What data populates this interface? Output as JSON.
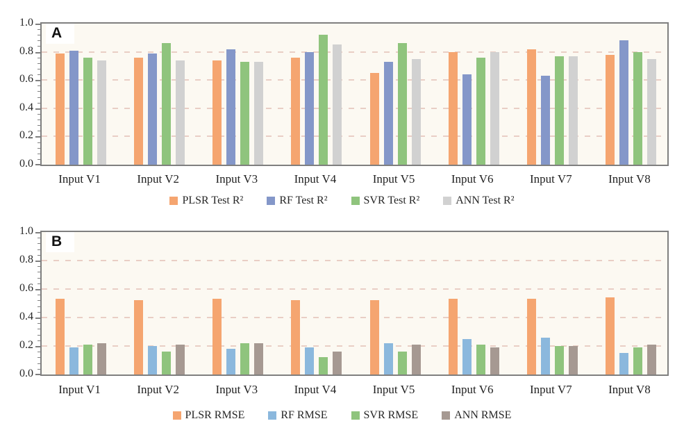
{
  "style": {
    "plot_bg": "#fcf9f2",
    "grid_color": "#e9cec5",
    "border_color": "#7f7f7f",
    "text_color": "#262626",
    "panel_label_color": "#111111"
  },
  "chart_data": [
    {
      "type": "bar",
      "panel_label": "A",
      "title": "",
      "xlabel": "",
      "ylabel": "",
      "ylim": [
        0,
        1.0
      ],
      "yticks": [
        0,
        0.2,
        0.4,
        0.6,
        0.8,
        1.0
      ],
      "ytick_labels": [
        "0.0",
        "0.2",
        "0.4",
        "0.6",
        "0.8",
        "1.0"
      ],
      "gridlines": [
        0.2,
        0.4,
        0.6,
        0.8
      ],
      "grid": "dashed",
      "legend_position": "bottom",
      "categories": [
        "Input V1",
        "Input V2",
        "Input V3",
        "Input V4",
        "Input V5",
        "Input V6",
        "Input V7",
        "Input V8"
      ],
      "series": [
        {
          "name": "PLSR Test R²",
          "color": "#f5a570",
          "values": [
            0.79,
            0.76,
            0.74,
            0.76,
            0.65,
            0.8,
            0.82,
            0.78
          ]
        },
        {
          "name": "RF Test R²",
          "color": "#8497c9",
          "values": [
            0.81,
            0.79,
            0.82,
            0.8,
            0.73,
            0.64,
            0.63,
            0.88
          ]
        },
        {
          "name": "SVR Test R²",
          "color": "#8fc47d",
          "values": [
            0.76,
            0.86,
            0.73,
            0.92,
            0.86,
            0.76,
            0.77,
            0.8
          ]
        },
        {
          "name": "ANN Test R²",
          "color": "#d1d1d1",
          "values": [
            0.74,
            0.74,
            0.73,
            0.85,
            0.75,
            0.8,
            0.77,
            0.75
          ]
        }
      ]
    },
    {
      "type": "bar",
      "panel_label": "B",
      "title": "",
      "xlabel": "",
      "ylabel": "",
      "ylim": [
        0,
        1.0
      ],
      "yticks": [
        0,
        0.2,
        0.4,
        0.6,
        0.8,
        1.0
      ],
      "ytick_labels": [
        "0.0",
        "0.2",
        "0.4",
        "0.6",
        "0.8",
        "1.0"
      ],
      "gridlines": [
        0.2,
        0.4,
        0.6,
        0.8
      ],
      "grid": "dashed",
      "legend_position": "bottom",
      "categories": [
        "Input V1",
        "Input V2",
        "Input V3",
        "Input V4",
        "Input V5",
        "Input V6",
        "Input V7",
        "Input V8"
      ],
      "series": [
        {
          "name": "PLSR RMSE",
          "color": "#f5a570",
          "values": [
            0.53,
            0.52,
            0.53,
            0.52,
            0.52,
            0.53,
            0.53,
            0.54
          ]
        },
        {
          "name": "RF RMSE",
          "color": "#8bb8dd",
          "values": [
            0.19,
            0.2,
            0.18,
            0.19,
            0.22,
            0.25,
            0.26,
            0.15
          ]
        },
        {
          "name": "SVR RMSE",
          "color": "#8fc47d",
          "values": [
            0.21,
            0.16,
            0.22,
            0.12,
            0.16,
            0.21,
            0.2,
            0.19
          ]
        },
        {
          "name": "ANN RMSE",
          "color": "#a69992",
          "values": [
            0.22,
            0.21,
            0.22,
            0.16,
            0.21,
            0.19,
            0.2,
            0.21
          ]
        }
      ]
    }
  ]
}
